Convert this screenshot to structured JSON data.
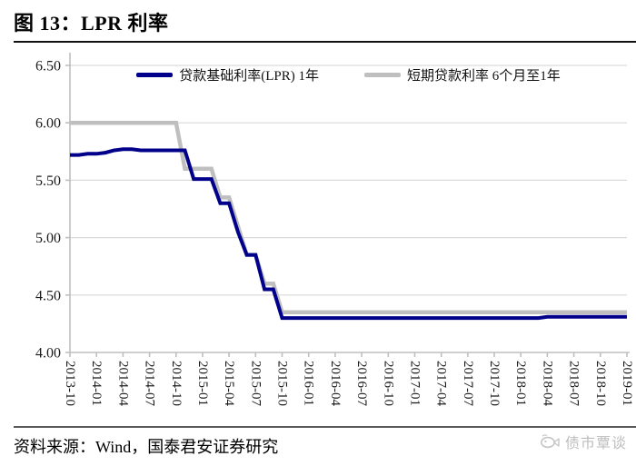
{
  "header": {
    "title": "图 13：LPR 利率"
  },
  "colors": {
    "lpr_blue": "#00008B",
    "benchmark_gray": "#BFBFBF",
    "gridline": "#D9D9D9",
    "axis": "#BFBFBF"
  },
  "chart_data": {
    "type": "line",
    "title": "LPR 利率",
    "grid": true,
    "legend_position": "top-center",
    "ylim": [
      4.0,
      6.5
    ],
    "y_ticks": [
      4.0,
      4.5,
      5.0,
      5.5,
      6.0,
      6.5
    ],
    "x_tick_step": 3,
    "x": [
      "2013-10",
      "2013-11",
      "2013-12",
      "2014-01",
      "2014-02",
      "2014-03",
      "2014-04",
      "2014-05",
      "2014-06",
      "2014-07",
      "2014-08",
      "2014-09",
      "2014-10",
      "2014-11",
      "2014-12",
      "2015-01",
      "2015-02",
      "2015-03",
      "2015-04",
      "2015-05",
      "2015-06",
      "2015-07",
      "2015-08",
      "2015-09",
      "2015-10",
      "2015-11",
      "2015-12",
      "2016-01",
      "2016-02",
      "2016-03",
      "2016-04",
      "2016-05",
      "2016-06",
      "2016-07",
      "2016-08",
      "2016-09",
      "2016-10",
      "2016-11",
      "2016-12",
      "2017-01",
      "2017-02",
      "2017-03",
      "2017-04",
      "2017-05",
      "2017-06",
      "2017-07",
      "2017-08",
      "2017-09",
      "2017-10",
      "2017-11",
      "2017-12",
      "2018-01",
      "2018-02",
      "2018-03",
      "2018-04",
      "2018-05",
      "2018-06",
      "2018-07",
      "2018-08",
      "2018-09",
      "2018-10",
      "2018-11",
      "2018-12",
      "2019-01"
    ],
    "series": [
      {
        "name": "贷款基础利率(LPR) 1年",
        "color": "#00008B",
        "width": 4,
        "values": [
          5.72,
          5.72,
          5.73,
          5.73,
          5.74,
          5.76,
          5.77,
          5.77,
          5.76,
          5.76,
          5.76,
          5.76,
          5.76,
          5.76,
          5.51,
          5.51,
          5.51,
          5.3,
          5.3,
          5.05,
          4.85,
          4.85,
          4.55,
          4.55,
          4.3,
          4.3,
          4.3,
          4.3,
          4.3,
          4.3,
          4.3,
          4.3,
          4.3,
          4.3,
          4.3,
          4.3,
          4.3,
          4.3,
          4.3,
          4.3,
          4.3,
          4.3,
          4.3,
          4.3,
          4.3,
          4.3,
          4.3,
          4.3,
          4.3,
          4.3,
          4.3,
          4.3,
          4.3,
          4.3,
          4.31,
          4.31,
          4.31,
          4.31,
          4.31,
          4.31,
          4.31,
          4.31,
          4.31,
          4.31
        ]
      },
      {
        "name": "短期贷款利率 6个月至1年",
        "color": "#BFBFBF",
        "width": 4.5,
        "values": [
          6.0,
          6.0,
          6.0,
          6.0,
          6.0,
          6.0,
          6.0,
          6.0,
          6.0,
          6.0,
          6.0,
          6.0,
          6.0,
          5.6,
          5.6,
          5.6,
          5.6,
          5.35,
          5.35,
          5.1,
          4.85,
          4.85,
          4.6,
          4.6,
          4.35,
          4.35,
          4.35,
          4.35,
          4.35,
          4.35,
          4.35,
          4.35,
          4.35,
          4.35,
          4.35,
          4.35,
          4.35,
          4.35,
          4.35,
          4.35,
          4.35,
          4.35,
          4.35,
          4.35,
          4.35,
          4.35,
          4.35,
          4.35,
          4.35,
          4.35,
          4.35,
          4.35,
          4.35,
          4.35,
          4.35,
          4.35,
          4.35,
          4.35,
          4.35,
          4.35,
          4.35,
          4.35,
          4.35,
          4.35
        ]
      }
    ]
  },
  "footer": {
    "source": "资料来源：Wind，国泰君安证券研究",
    "watermark": "债市覃谈"
  }
}
